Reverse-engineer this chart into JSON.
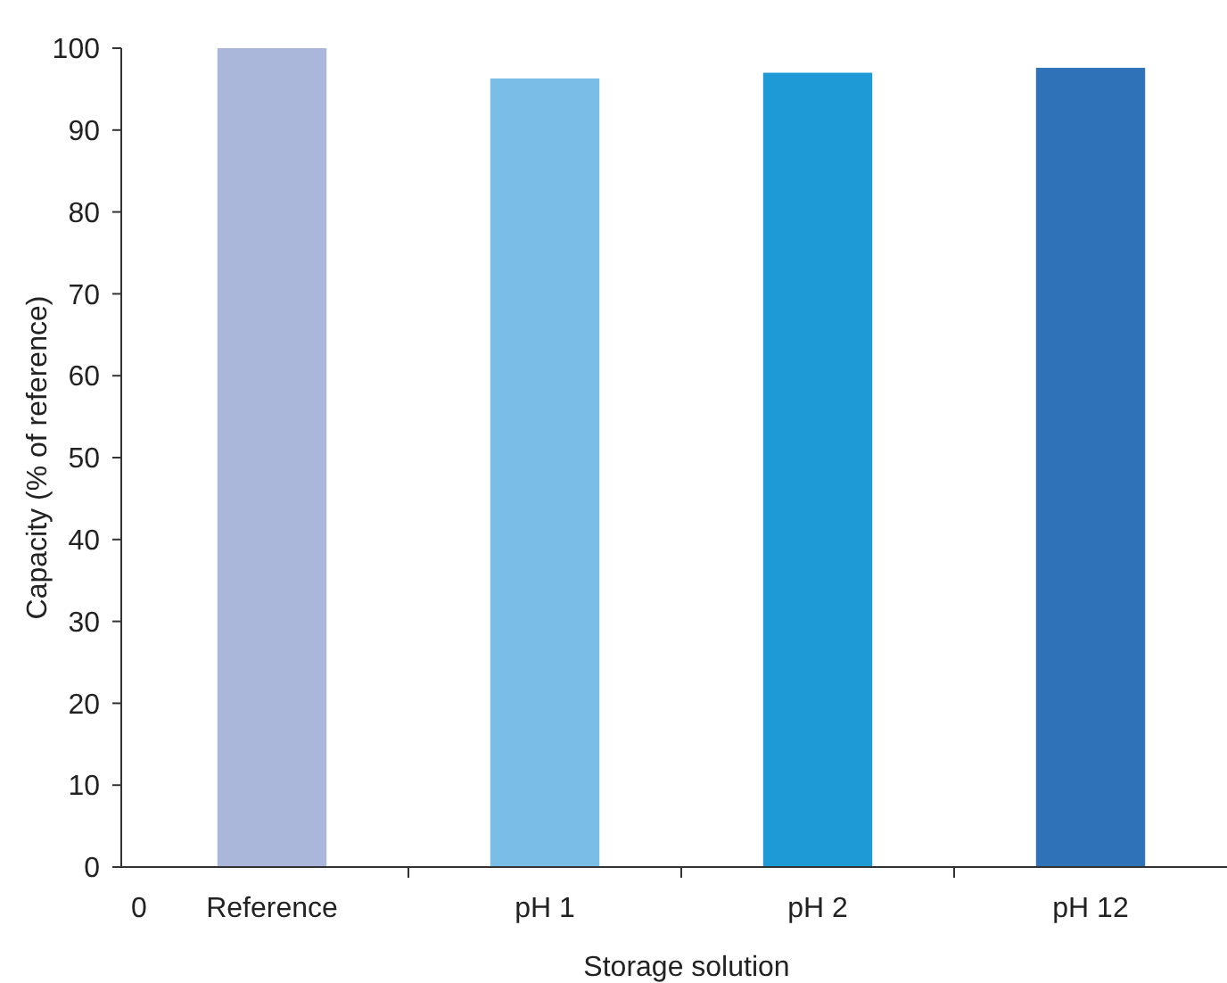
{
  "chart_data": {
    "type": "bar",
    "xlabel": "Storage solution",
    "ylabel": "Capacity (% of reference)",
    "categories": [
      "Reference",
      "pH 1",
      "pH 2",
      "pH 12"
    ],
    "values": [
      100,
      96.3,
      97,
      97.6
    ],
    "colors": [
      "#aab6da",
      "#7abde6",
      "#1e9ad6",
      "#2f72b8"
    ],
    "ylim": [
      0,
      100
    ],
    "yticks": [
      0,
      10,
      20,
      30,
      40,
      50,
      60,
      70,
      80,
      90,
      100
    ],
    "grid": false,
    "annotations": [
      "0"
    ]
  }
}
